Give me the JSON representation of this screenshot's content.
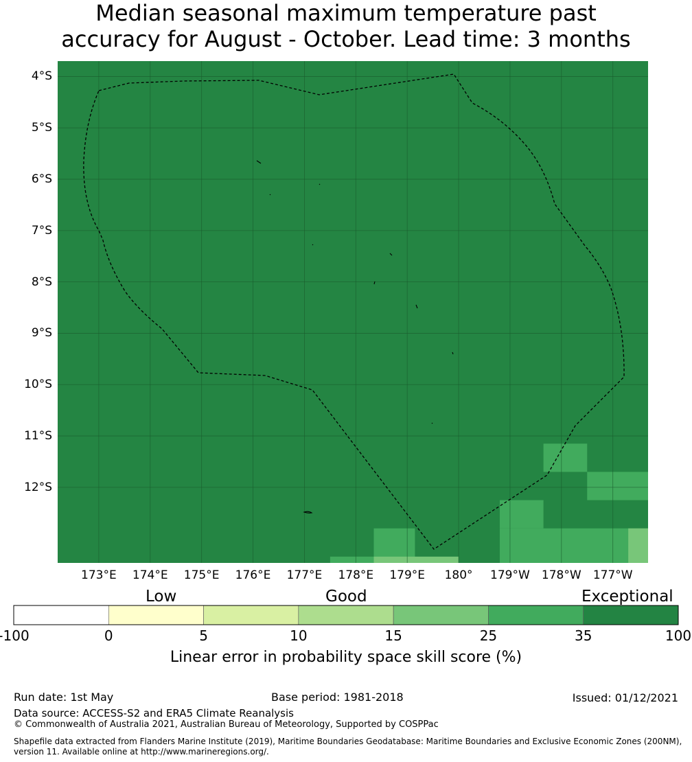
{
  "title": {
    "line1": "Median seasonal maximum temperature past",
    "line2": "accuracy for August - October. Lead time: 3 months"
  },
  "map": {
    "lat_labels": [
      "4°S",
      "5°S",
      "6°S",
      "7°S",
      "8°S",
      "9°S",
      "10°S",
      "11°S",
      "12°S"
    ],
    "lon_labels": [
      "173°E",
      "174°E",
      "175°E",
      "176°E",
      "177°E",
      "178°E",
      "179°E",
      "180°",
      "179°W",
      "178°W",
      "177°W"
    ],
    "background_color": "#248543",
    "grid_cells": [
      {
        "lon": [
          -178.35,
          -177.5
        ],
        "lat": [
          -11.15,
          -11.7
        ],
        "category": "25-35"
      },
      {
        "lon": [
          -177.5,
          -176.3
        ],
        "lat": [
          -11.7,
          -12.25
        ],
        "category": "25-35"
      },
      {
        "lon": [
          -179.2,
          -178.35
        ],
        "lat": [
          -12.25,
          -12.8
        ],
        "category": "25-35"
      },
      {
        "lon": [
          -179.2,
          -176.3
        ],
        "lat": [
          -12.8,
          -13.5
        ],
        "category": "25-35"
      },
      {
        "lon": [
          178.35,
          179.15
        ],
        "lat": [
          -12.8,
          -13.5
        ],
        "category": "25-35"
      },
      {
        "lon": [
          177.5,
          178.35
        ],
        "lat": [
          -13.35,
          -13.5
        ],
        "category": "25-35"
      },
      {
        "lon": [
          178.35,
          180.0
        ],
        "lat": [
          -13.35,
          -13.5
        ],
        "category": "15-25"
      },
      {
        "lon": [
          -176.7,
          -176.3
        ],
        "lat": [
          -12.8,
          -13.5
        ],
        "category": "15-25"
      }
    ]
  },
  "colorbar": {
    "categories": [
      "Low",
      "Good",
      "Exceptional"
    ],
    "ticks": [
      "-100",
      "0",
      "5",
      "10",
      "15",
      "25",
      "35",
      "100"
    ],
    "colors": [
      "#ffffff",
      "#ffffcc",
      "#d9f0a3",
      "#addd8e",
      "#78c679",
      "#41ab5d",
      "#238443"
    ],
    "label": "Linear error in probability space skill score (%)"
  },
  "footer": {
    "run_date": "Run date: 1st May",
    "base_period": "Base period: 1981-2018",
    "issued": "Issued: 01/12/2021",
    "data_source": "Data source: ACCESS-S2 and ERA5 Climate Reanalysis",
    "copyright": "© Commonwealth of Australia 2021, Australian Bureau of Meteorology, Supported by COSPPac",
    "shapefile_line1": "Shapefile data extracted from Flanders Marine Institute (2019), Maritime Boundaries Geodatabase: Maritime Boundaries and Exclusive Economic Zones (200NM),",
    "shapefile_line2": "version 11. Available online at http://www.marineregions.org/."
  }
}
